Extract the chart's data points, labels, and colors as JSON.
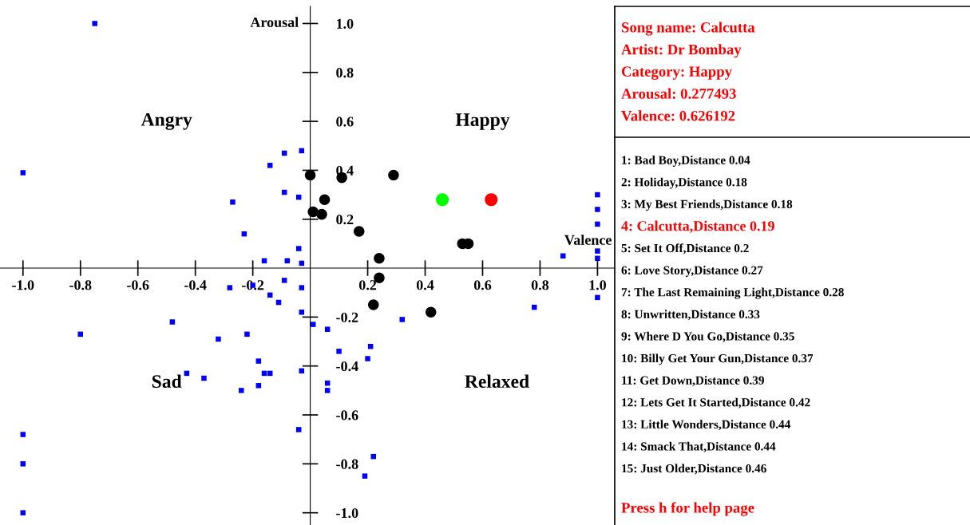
{
  "chart_data": [
    {
      "type": "scatter",
      "xlabel": "Valence",
      "ylabel": "Arousal",
      "xlim": [
        -1.08,
        1.06
      ],
      "ylim": [
        -1.05,
        1.07
      ],
      "xticks": [
        {
          "value": -1.0,
          "label": "-1.0"
        },
        -0.8,
        -0.6,
        -0.4,
        -0.2,
        0.2,
        0.4,
        0.6,
        0.8,
        {
          "value": 1.0,
          "label": "1.0"
        }
      ],
      "yticks": [
        {
          "value": -1.0,
          "label": "-1.0"
        },
        -0.8,
        -0.6,
        -0.4,
        -0.2,
        0.2,
        0.4,
        0.6,
        0.8,
        {
          "value": 1.0,
          "label": "1.0"
        }
      ],
      "grid": false,
      "annotations": [
        "Angry",
        "Happy",
        "Sad",
        "Relaxed"
      ],
      "series": [
        {
          "color": "#0000ff",
          "marker": "square",
          "x": [
            -0.75,
            -1.0,
            -0.03,
            -0.09,
            -0.14,
            -0.09,
            -0.04,
            -0.27,
            -0.23,
            -0.04,
            -0.16,
            -0.08,
            -0.03,
            1.0,
            1.0,
            1.0,
            0.88,
            1.0,
            1.0,
            1.0,
            0.78,
            0.32,
            0.01,
            0.06,
            0.21,
            0.1,
            0.2,
            0.06,
            0.06,
            0.22,
            0.19,
            -0.28,
            -0.2,
            -0.09,
            -0.03,
            -0.14,
            -0.11,
            -0.03,
            -0.48,
            -0.8,
            -0.32,
            -0.22,
            -0.18,
            -0.43,
            -0.37,
            -0.16,
            -0.14,
            -0.03,
            -0.18,
            -0.24,
            -0.04,
            -1.0,
            -1.0,
            -1.0
          ],
          "values": [
            1.0,
            0.39,
            0.48,
            0.47,
            0.42,
            0.31,
            0.29,
            0.27,
            0.14,
            0.08,
            0.03,
            0.03,
            0.02,
            0.3,
            0.24,
            0.18,
            0.05,
            0.07,
            0.04,
            -0.12,
            -0.16,
            -0.21,
            -0.23,
            -0.25,
            -0.32,
            -0.34,
            -0.37,
            -0.47,
            -0.5,
            -0.77,
            -0.85,
            -0.08,
            -0.07,
            -0.05,
            -0.08,
            -0.11,
            -0.14,
            -0.18,
            -0.22,
            -0.27,
            -0.29,
            -0.27,
            -0.38,
            -0.43,
            -0.45,
            -0.43,
            -0.43,
            -0.42,
            -0.48,
            -0.5,
            -0.66,
            -0.68,
            -0.8,
            -1.0
          ]
        },
        {
          "color": "#000000",
          "marker": "circle",
          "x": [
            0.0,
            0.11,
            0.29,
            0.05,
            0.01,
            0.04,
            0.17,
            0.53,
            0.55,
            0.24,
            0.24,
            0.22,
            0.42
          ],
          "values": [
            0.38,
            0.37,
            0.38,
            0.28,
            0.23,
            0.22,
            0.15,
            0.1,
            0.1,
            0.04,
            -0.04,
            -0.15,
            -0.18
          ]
        },
        {
          "color": "#00ff00",
          "marker": "circle",
          "x": [
            0.46
          ],
          "values": [
            0.28
          ]
        },
        {
          "color": "#ff0000",
          "marker": "circle",
          "x": [
            0.63
          ],
          "values": [
            0.28
          ]
        }
      ]
    },
    {
      "type": "other",
      "annotations": [
        "Song name: Calcutta",
        "Artist: Dr Bombay",
        "Category: Happy",
        "Arousal: 0.277493",
        "Valence: 0.626192",
        "1: Bad Boy,Distance 0.04",
        "2: Holiday,Distance 0.18",
        "3: My Best Friends,Distance 0.18",
        "4: Calcutta,Distance 0.19",
        "5: Set It Off,Distance 0.2",
        "6: Love Story,Distance 0.27",
        "7: The Last Remaining Light,Distance 0.28",
        "8: Unwritten,Distance 0.33",
        "9: Where D You Go,Distance 0.35",
        "10: Billy Get Your Gun,Distance 0.37",
        "11: Get Down,Distance 0.39",
        "12: Lets Get It Started,Distance 0.42",
        "13: Little Wonders,Distance 0.44",
        "14: Smack That,Distance 0.44",
        "15: Just Older,Distance 0.46",
        "Press h for help page"
      ],
      "colors": [
        "#ff0000",
        "#ff0000",
        "#ff0000",
        "#ff0000",
        "#ff0000",
        "#000000",
        "#000000",
        "#000000",
        "#ff0000",
        "#000000",
        "#000000",
        "#000000",
        "#000000",
        "#000000",
        "#000000",
        "#000000",
        "#000000",
        "#000000",
        "#000000",
        "#000000",
        "#ff0000"
      ]
    }
  ]
}
